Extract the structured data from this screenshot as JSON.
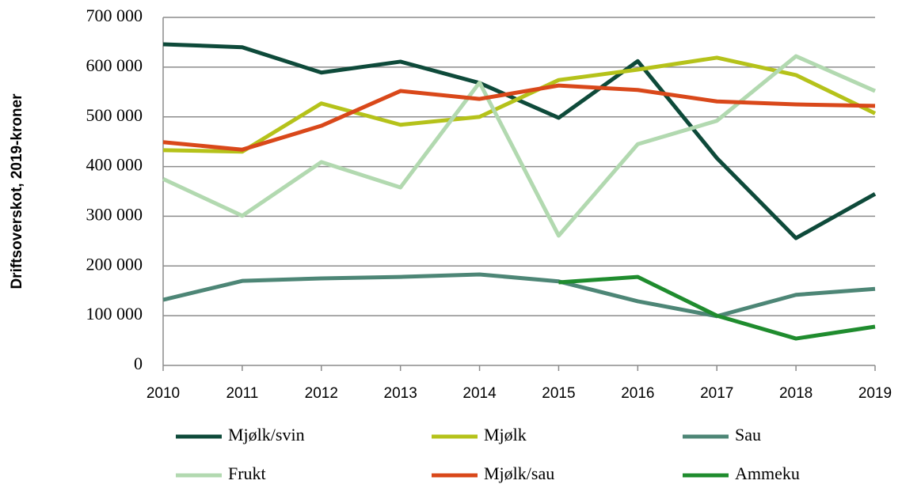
{
  "chart_data": {
    "type": "line",
    "ylabel": "Driftsoverskot, 2019-kroner",
    "x": [
      2010,
      2011,
      2012,
      2013,
      2014,
      2015,
      2016,
      2017,
      2018,
      2019
    ],
    "xlim": [
      2010,
      2019
    ],
    "xticks": [
      2010,
      2011,
      2012,
      2013,
      2014,
      2015,
      2016,
      2017,
      2018,
      2019
    ],
    "ylim": [
      0,
      700000
    ],
    "yticks": [
      0,
      {
        "value": 100000,
        "label": "100 000"
      },
      {
        "value": 200000,
        "label": "200 000"
      },
      {
        "value": 300000,
        "label": "300 000"
      },
      {
        "value": 400000,
        "label": "400 000"
      },
      {
        "value": 500000,
        "label": "500 000"
      },
      {
        "value": 600000,
        "label": "600 000"
      },
      {
        "value": 700000,
        "label": "700 000"
      }
    ],
    "grid": true,
    "legend": "bottom",
    "series": [
      {
        "name": "Mjølk/svin",
        "color": "#0e4a3a",
        "values": [
          646000,
          640000,
          589000,
          611000,
          568000,
          498000,
          612000,
          417000,
          256000,
          345000
        ]
      },
      {
        "name": "Mjølk",
        "color": "#b5c21a",
        "values": [
          433000,
          430000,
          527000,
          484000,
          500000,
          574000,
          595000,
          619000,
          584000,
          507000
        ]
      },
      {
        "name": "Sau",
        "color": "#4d8676",
        "values": [
          132000,
          170000,
          175000,
          178000,
          183000,
          169000,
          129000,
          99000,
          142000,
          154000
        ]
      },
      {
        "name": "Frukt",
        "color": "#b2d9b0",
        "values": [
          375000,
          301000,
          409000,
          358000,
          569000,
          261000,
          445000,
          492000,
          622000,
          552000
        ]
      },
      {
        "name": "Mjølk/sau",
        "color": "#d9481a",
        "values": [
          449000,
          434000,
          482000,
          552000,
          536000,
          563000,
          554000,
          531000,
          525000,
          522000
        ]
      },
      {
        "name": "Ammeku",
        "color": "#1f8c2e",
        "values": [
          null,
          null,
          null,
          null,
          null,
          167000,
          178000,
          100000,
          54000,
          78000
        ]
      }
    ]
  }
}
